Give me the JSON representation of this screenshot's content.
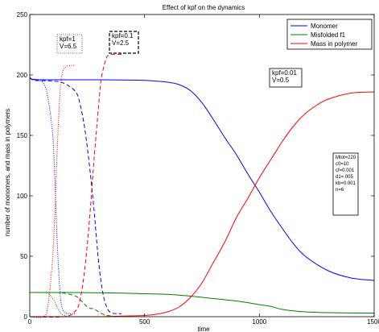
{
  "chart_data": {
    "type": "line",
    "title": "Effect of kpf on the dynamics",
    "xlabel": "time",
    "ylabel": "number of monomers, and mass in polymers",
    "xlim": [
      0,
      1500
    ],
    "ylim": [
      0,
      250
    ],
    "xticks": [
      0,
      500,
      1000,
      1500
    ],
    "yticks": [
      0,
      50,
      100,
      150,
      200,
      250
    ],
    "grid": false,
    "legend_position": "top-right",
    "colors": {
      "Monomer": "#0000ff",
      "Misfolded f1": "#008000",
      "Mass in polymer": "#ff0000"
    },
    "legend": [
      "Monomer",
      "Misfolded f1",
      "Mass in polymer"
    ],
    "series": [
      {
        "name": "Monomer",
        "line_style": "solid",
        "color": "#0000ff",
        "x": [
          0,
          10,
          50,
          100,
          200,
          300,
          400,
          500,
          600,
          650,
          700,
          750,
          800,
          850,
          900,
          950,
          1000,
          1050,
          1100,
          1150,
          1200,
          1300,
          1400,
          1500
        ],
        "y": [
          198,
          196.5,
          196,
          196,
          196,
          196,
          195.8,
          195.5,
          194,
          192,
          187,
          177,
          163,
          148,
          134,
          118,
          103,
          87,
          73,
          60,
          50,
          38,
          32,
          30
        ]
      },
      {
        "name": "Misfolded f1",
        "line_style": "solid",
        "color": "#008000",
        "x": [
          0,
          200,
          400,
          500,
          600,
          700,
          800,
          900,
          1000,
          1050,
          1100,
          1200,
          1300,
          1500
        ],
        "y": [
          20,
          20,
          19.5,
          19,
          18.5,
          17,
          15,
          13,
          10,
          8.5,
          6,
          4,
          3.3,
          3
        ]
      },
      {
        "name": "Mass in polymer",
        "line_style": "solid",
        "color": "#ff0000",
        "x": [
          0,
          300,
          400,
          500,
          550,
          600,
          650,
          700,
          750,
          800,
          850,
          900,
          950,
          1000,
          1050,
          1100,
          1150,
          1200,
          1250,
          1300,
          1400,
          1500
        ],
        "y": [
          0,
          0,
          0.5,
          1,
          2,
          4,
          8,
          16,
          28,
          45,
          62,
          82,
          98,
          115,
          130,
          145,
          158,
          168,
          175,
          180,
          185,
          186
        ]
      },
      {
        "label_ref": "kpf=0.1 V=2.5",
        "line_style": "dashed",
        "color": "#0000ff",
        "x": [
          0,
          20,
          100,
          150,
          200,
          220,
          240,
          260,
          280,
          300,
          320,
          340,
          360,
          380,
          400
        ],
        "y": [
          198,
          195.5,
          195,
          193,
          186,
          175,
          155,
          125,
          88,
          45,
          18,
          6,
          3,
          2.5,
          2.5
        ]
      },
      {
        "label_ref": "kpf=0.1 V=2.5",
        "line_style": "dashed",
        "color": "#008000",
        "x": [
          0,
          100,
          150,
          200,
          220,
          240,
          260,
          280,
          300,
          320,
          340,
          360
        ],
        "y": [
          20,
          20,
          19.5,
          17,
          14,
          10,
          7,
          6.5,
          4,
          2,
          1,
          0.5
        ]
      },
      {
        "label_ref": "kpf=0.1 V=2.5",
        "line_style": "dashed",
        "color": "#ff0000",
        "x": [
          0,
          150,
          200,
          220,
          240,
          260,
          280,
          300,
          310,
          320,
          330,
          340,
          360,
          400
        ],
        "y": [
          0,
          0,
          5,
          15,
          40,
          80,
          130,
          175,
          195,
          205,
          212,
          216,
          217,
          217
        ]
      },
      {
        "label_ref": "kpf=1 V=6.5",
        "line_style": "dotted",
        "color": "#0000ff",
        "x": [
          0,
          20,
          60,
          80,
          100,
          110,
          120,
          130,
          140,
          160,
          200
        ],
        "y": [
          197,
          196,
          193,
          180,
          150,
          110,
          60,
          25,
          8,
          3,
          2.5
        ]
      },
      {
        "label_ref": "kpf=1 V=6.5",
        "line_style": "dotted",
        "color": "#008000",
        "x": [
          0,
          60,
          80,
          100,
          110,
          120,
          130,
          140,
          160
        ],
        "y": [
          20,
          20,
          19,
          15,
          12,
          8,
          4,
          2,
          0.5
        ]
      },
      {
        "label_ref": "kpf=1 V=6.5",
        "line_style": "dotted",
        "color": "#ff0000",
        "x": [
          0,
          60,
          80,
          100,
          110,
          120,
          130,
          140,
          160,
          200
        ],
        "y": [
          0,
          0,
          10,
          50,
          90,
          140,
          180,
          200,
          207,
          208
        ]
      }
    ],
    "annotations": [
      {
        "id": "kpf1",
        "lines": [
          "kpf=1",
          "V=6.5"
        ],
        "box_style": "dotted"
      },
      {
        "id": "kpf01",
        "lines": [
          "kpf=0.1",
          "V=2.5"
        ],
        "box_style": "dashed"
      },
      {
        "id": "kpf001",
        "lines": [
          "kpf=0.01",
          "V=0.5"
        ],
        "box_style": "solid"
      },
      {
        "id": "params",
        "lines": [
          "Mtot=220",
          "c0=10",
          "cf=0.001",
          "d1=.005",
          "kb=0.001",
          "n=6"
        ],
        "box_style": "solid"
      }
    ]
  }
}
